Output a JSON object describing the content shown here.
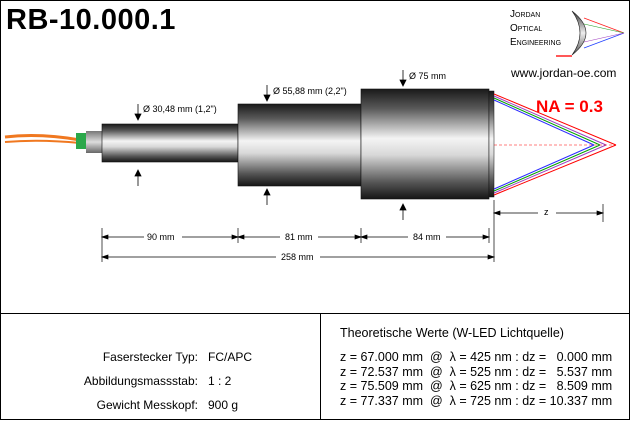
{
  "title": "RB-10.000.1",
  "logo": {
    "line1": "Jordan",
    "line2": "Optical",
    "line3": "Engineering",
    "url": "www.jordan-oe.com"
  },
  "na_label": "NA = 0.3",
  "diameters": {
    "d1": "Ø 30,48 mm (1,2\")",
    "d2": "Ø 55,88 mm (2,2\")",
    "d3": "Ø 75 mm"
  },
  "lengths": {
    "l1": "90 mm",
    "l2": "81 mm",
    "l3": "84 mm",
    "total": "258 mm",
    "z": "z"
  },
  "specs": [
    {
      "key": "Faserstecker Typ:",
      "value": "FC/APC"
    },
    {
      "key": "Abbildungsmassstab:",
      "value": "1 : 2"
    },
    {
      "key": "Gewicht Messkopf:",
      "value": "900 g"
    }
  ],
  "theory": {
    "heading": "Theoretische Werte (W-LED Lichtquelle)",
    "rows": [
      "z = 67.000 mm  @  λ = 425 nm : dz =   0.000 mm",
      "z = 72.537 mm  @  λ = 525 nm : dz =   5.537 mm",
      "z = 75.509 mm  @  λ = 625 nm : dz =   8.509 mm",
      "z = 77.337 mm  @  λ = 725 nm : dz = 10.337 mm"
    ]
  },
  "colors": {
    "na": "#ff0000",
    "fiber_orange": "#f07820",
    "connector_green": "#2aa84a",
    "ray_red": "#ff0000",
    "ray_blue": "#2a2aff",
    "ray_green": "#00a000",
    "ray_violet": "#9a40c0"
  }
}
